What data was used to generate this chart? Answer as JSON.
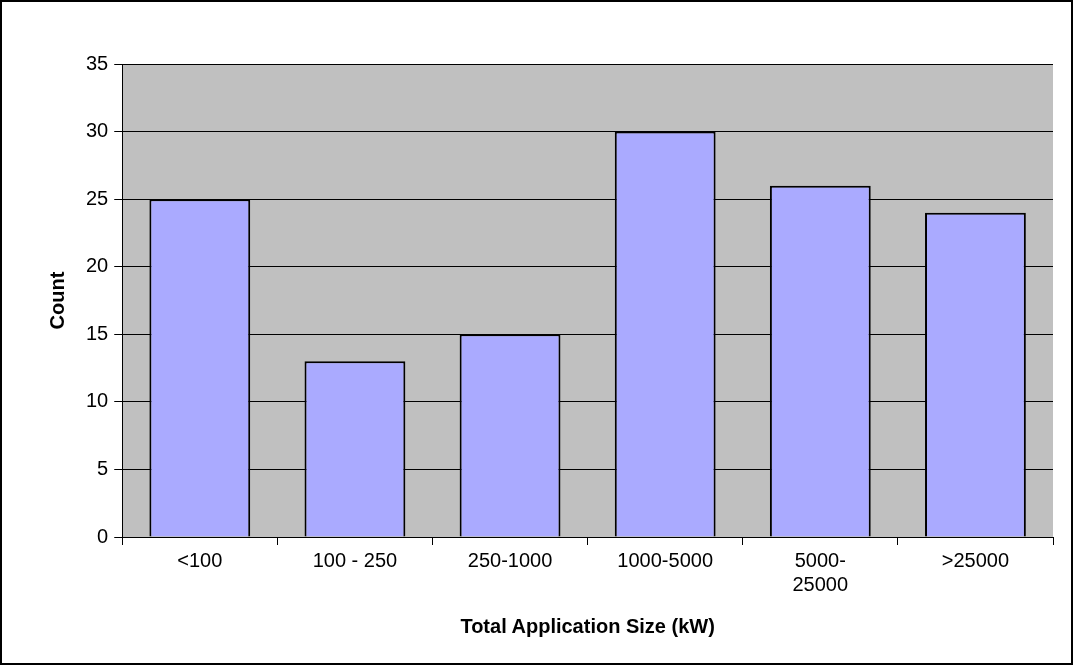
{
  "chart_data": {
    "type": "bar",
    "xlabel": "Total Application Size (kW)",
    "ylabel": "Count",
    "categories": [
      "<100",
      "100 - 250",
      "250-1000",
      "1000-5000",
      "5000-25000",
      ">25000"
    ],
    "values": [
      25,
      13,
      15,
      30,
      26,
      24
    ],
    "color": "#aaaaff",
    "ylim": [
      0,
      35
    ],
    "yticks": [
      0,
      5,
      10,
      15,
      20,
      25,
      30,
      35
    ],
    "grid": "y",
    "legend": false
  }
}
